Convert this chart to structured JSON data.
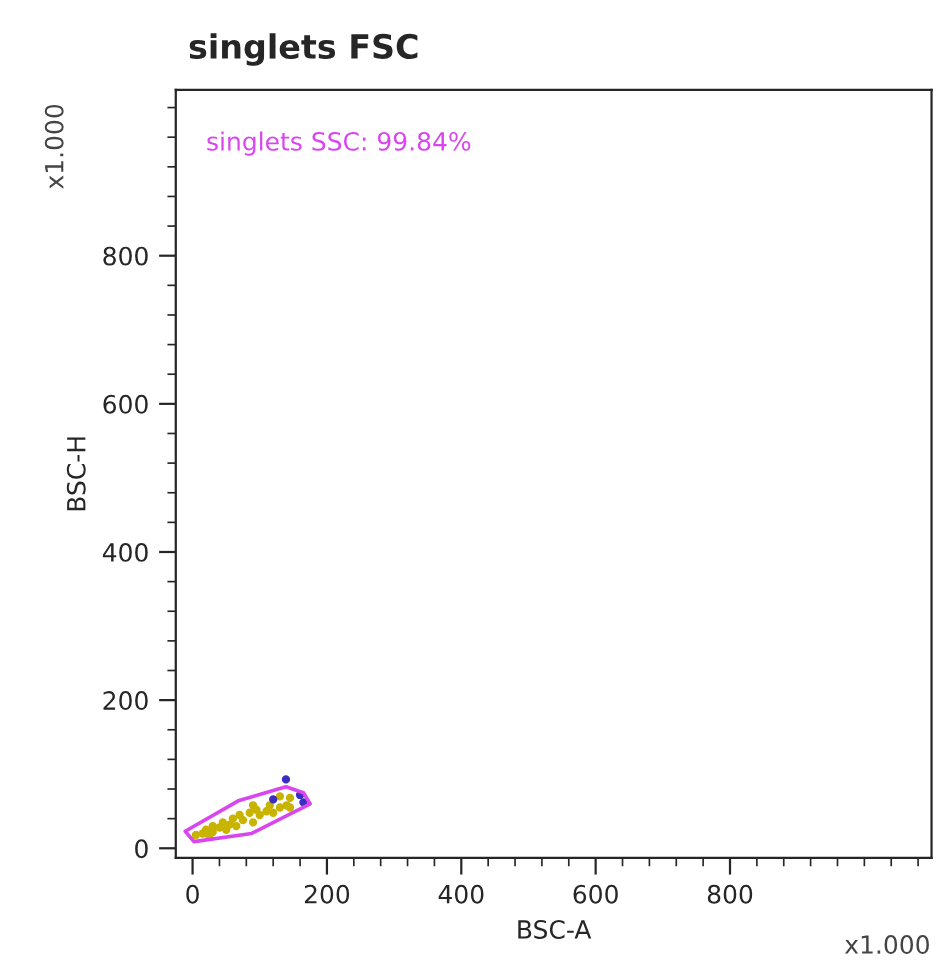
{
  "chart_data": {
    "type": "scatter",
    "title": "singlets FSC",
    "xlabel": "BSC-A",
    "ylabel": "BSC-H",
    "annotations": [
      "singlets SSC: 99.84%",
      "x1.000",
      "x1.000"
    ],
    "xlim": [
      -25,
      1100
    ],
    "ylim": [
      -13,
      1024
    ],
    "xticks": [
      0,
      200,
      400,
      600,
      800
    ],
    "yticks": [
      0,
      200,
      400,
      600,
      800
    ],
    "grid": false,
    "legend": false,
    "marker": "circle",
    "series": [
      {
        "color": "#c8b400",
        "x": [
          5,
          15,
          20,
          30,
          30,
          40,
          45,
          55,
          60,
          65,
          70,
          85,
          90,
          95,
          100,
          110,
          115,
          120,
          130,
          140,
          145,
          50,
          75,
          145,
          25,
          90,
          130
        ],
        "values": [
          18,
          20,
          25,
          22,
          30,
          28,
          35,
          32,
          40,
          30,
          45,
          48,
          35,
          52,
          45,
          50,
          58,
          48,
          55,
          58,
          68,
          25,
          38,
          55,
          16,
          58,
          70
        ]
      },
      {
        "color": "#3a2fc0",
        "x": [
          139,
          160,
          120,
          165
        ],
        "values": [
          93,
          72,
          66,
          62
        ]
      }
    ]
  }
}
